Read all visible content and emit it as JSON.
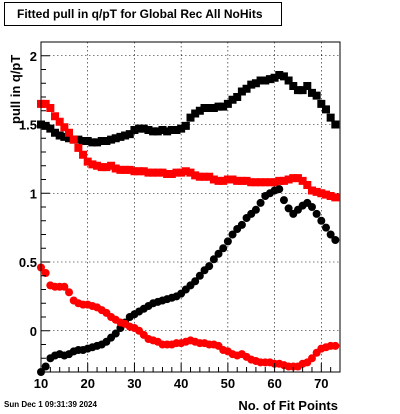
{
  "title": "Fitted pull in q/pT for Global Rec All NoHits",
  "timestamp": "Sun Dec  1 09:31:39 2024",
  "chart_data": {
    "type": "scatter",
    "title": "Fitted pull in q/pT for Global Rec All NoHits",
    "xlabel": "No. of Fit Points",
    "ylabel": "pull in q/pT",
    "xlim": [
      10,
      74
    ],
    "ylim": [
      -0.3,
      2.1
    ],
    "xticks": [
      10,
      20,
      30,
      40,
      50,
      60,
      70
    ],
    "yticks": [
      0,
      0.5,
      1,
      1.5,
      2
    ],
    "grid": true,
    "series": [
      {
        "marker": "square",
        "color": "#000000",
        "x": [
          10,
          11,
          12,
          13,
          14,
          15,
          16,
          17,
          18,
          19,
          20,
          21,
          22,
          23,
          24,
          25,
          26,
          27,
          28,
          29,
          30,
          31,
          32,
          33,
          34,
          35,
          36,
          37,
          38,
          39,
          40,
          41,
          42,
          43,
          44,
          45,
          46,
          47,
          48,
          49,
          50,
          51,
          52,
          53,
          54,
          55,
          56,
          57,
          58,
          59,
          60,
          61,
          62,
          63,
          64,
          65,
          66,
          67,
          68,
          69,
          70,
          71,
          72,
          73
        ],
        "y": [
          1.5,
          1.49,
          1.47,
          1.44,
          1.42,
          1.41,
          1.4,
          1.39,
          1.39,
          1.38,
          1.38,
          1.37,
          1.37,
          1.38,
          1.38,
          1.39,
          1.4,
          1.41,
          1.42,
          1.43,
          1.46,
          1.47,
          1.47,
          1.46,
          1.45,
          1.45,
          1.46,
          1.45,
          1.46,
          1.46,
          1.47,
          1.49,
          1.55,
          1.58,
          1.6,
          1.62,
          1.62,
          1.62,
          1.63,
          1.63,
          1.65,
          1.68,
          1.7,
          1.74,
          1.76,
          1.79,
          1.8,
          1.82,
          1.82,
          1.83,
          1.84,
          1.86,
          1.85,
          1.82,
          1.78,
          1.75,
          1.75,
          1.78,
          1.73,
          1.71,
          1.65,
          1.61,
          1.55,
          1.5
        ]
      },
      {
        "marker": "square",
        "color": "#ff0000",
        "x": [
          10,
          11,
          12,
          13,
          14,
          15,
          16,
          17,
          18,
          19,
          20,
          21,
          22,
          23,
          24,
          25,
          26,
          27,
          28,
          29,
          30,
          31,
          32,
          33,
          34,
          35,
          36,
          37,
          38,
          39,
          40,
          41,
          42,
          43,
          44,
          45,
          46,
          47,
          48,
          49,
          50,
          51,
          52,
          53,
          54,
          55,
          56,
          57,
          58,
          59,
          60,
          61,
          62,
          63,
          64,
          65,
          66,
          67,
          68,
          69,
          70,
          71,
          72,
          73
        ],
        "y": [
          1.65,
          1.65,
          1.62,
          1.56,
          1.52,
          1.48,
          1.44,
          1.39,
          1.33,
          1.28,
          1.23,
          1.21,
          1.2,
          1.19,
          1.19,
          1.2,
          1.18,
          1.17,
          1.17,
          1.17,
          1.16,
          1.16,
          1.16,
          1.15,
          1.15,
          1.15,
          1.15,
          1.14,
          1.14,
          1.15,
          1.15,
          1.16,
          1.15,
          1.13,
          1.12,
          1.12,
          1.12,
          1.1,
          1.09,
          1.09,
          1.1,
          1.1,
          1.09,
          1.09,
          1.09,
          1.08,
          1.08,
          1.08,
          1.08,
          1.08,
          1.08,
          1.09,
          1.09,
          1.1,
          1.11,
          1.11,
          1.09,
          1.06,
          1.02,
          1.01,
          1.0,
          0.99,
          0.98,
          0.97
        ]
      },
      {
        "marker": "circle",
        "color": "#000000",
        "x": [
          10,
          11,
          12,
          13,
          14,
          15,
          16,
          17,
          18,
          19,
          20,
          21,
          22,
          23,
          24,
          25,
          26,
          27,
          28,
          29,
          30,
          31,
          32,
          33,
          34,
          35,
          36,
          37,
          38,
          39,
          40,
          41,
          42,
          43,
          44,
          45,
          46,
          47,
          48,
          49,
          50,
          51,
          52,
          53,
          54,
          55,
          56,
          57,
          58,
          59,
          60,
          61,
          62,
          63,
          64,
          65,
          66,
          67,
          68,
          69,
          70,
          71,
          72,
          73
        ],
        "y": [
          -0.3,
          -0.26,
          -0.2,
          -0.18,
          -0.17,
          -0.18,
          -0.17,
          -0.15,
          -0.14,
          -0.14,
          -0.13,
          -0.12,
          -0.11,
          -0.1,
          -0.08,
          -0.05,
          -0.02,
          0.02,
          0.06,
          0.1,
          0.12,
          0.14,
          0.16,
          0.18,
          0.2,
          0.21,
          0.22,
          0.23,
          0.24,
          0.25,
          0.27,
          0.3,
          0.33,
          0.36,
          0.4,
          0.44,
          0.47,
          0.52,
          0.56,
          0.6,
          0.65,
          0.7,
          0.74,
          0.77,
          0.82,
          0.85,
          0.88,
          0.93,
          0.98,
          1.0,
          1.02,
          1.03,
          0.95,
          0.89,
          0.85,
          0.88,
          0.91,
          0.93,
          0.9,
          0.85,
          0.8,
          0.75,
          0.7,
          0.66
        ]
      },
      {
        "marker": "circle",
        "color": "#ff0000",
        "x": [
          10,
          11,
          12,
          13,
          14,
          15,
          16,
          17,
          18,
          19,
          20,
          21,
          22,
          23,
          24,
          25,
          26,
          27,
          28,
          29,
          30,
          31,
          32,
          33,
          34,
          35,
          36,
          37,
          38,
          39,
          40,
          41,
          42,
          43,
          44,
          45,
          46,
          47,
          48,
          49,
          50,
          51,
          52,
          53,
          54,
          55,
          56,
          57,
          58,
          59,
          60,
          61,
          62,
          63,
          64,
          65,
          66,
          67,
          68,
          69,
          70,
          71,
          72,
          73
        ],
        "y": [
          0.46,
          0.42,
          0.33,
          0.32,
          0.32,
          0.32,
          0.28,
          0.22,
          0.2,
          0.19,
          0.19,
          0.18,
          0.17,
          0.15,
          0.13,
          0.1,
          0.08,
          0.06,
          0.05,
          0.03,
          0.02,
          0.0,
          -0.03,
          -0.06,
          -0.07,
          -0.08,
          -0.1,
          -0.1,
          -0.1,
          -0.09,
          -0.09,
          -0.08,
          -0.07,
          -0.08,
          -0.09,
          -0.09,
          -0.1,
          -0.1,
          -0.11,
          -0.14,
          -0.15,
          -0.17,
          -0.18,
          -0.17,
          -0.19,
          -0.21,
          -0.22,
          -0.23,
          -0.23,
          -0.23,
          -0.24,
          -0.24,
          -0.25,
          -0.26,
          -0.26,
          -0.26,
          -0.24,
          -0.23,
          -0.2,
          -0.16,
          -0.13,
          -0.12,
          -0.11,
          -0.11
        ]
      }
    ]
  }
}
